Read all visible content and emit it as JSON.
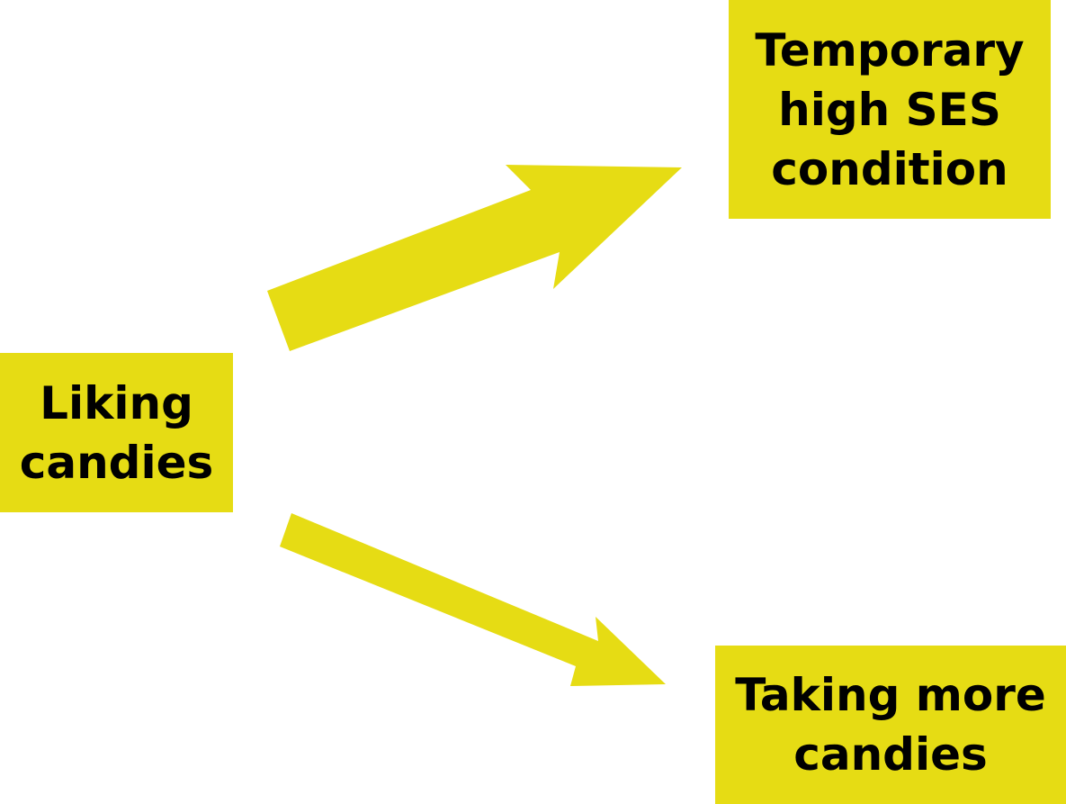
{
  "diagram": {
    "fill_color": "#e6dc14",
    "text_color": "#000000",
    "nodes": {
      "liking": {
        "label": "Liking\ncandies"
      },
      "temporary": {
        "label": "Temporary\nhigh SES\ncondition"
      },
      "taking": {
        "label": "Taking more\ncandies"
      }
    },
    "edges": [
      {
        "from": "liking",
        "to": "temporary"
      },
      {
        "from": "liking",
        "to": "taking"
      }
    ]
  }
}
